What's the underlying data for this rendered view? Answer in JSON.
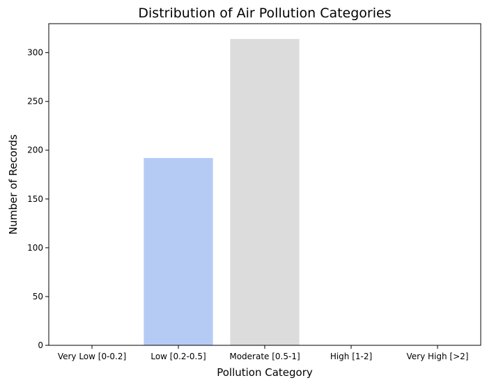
{
  "chart_data": {
    "type": "bar",
    "title": "Distribution of Air Pollution Categories",
    "xlabel": "Pollution Category",
    "ylabel": "Number of Records",
    "categories": [
      "Very Low [0-0.2]",
      "Low [0.2-0.5]",
      "Moderate [0.5-1]",
      "High [1-2]",
      "Very High [>2]"
    ],
    "values": [
      0,
      192,
      314,
      0,
      0
    ],
    "bar_colors": [
      "#3b4cc0",
      "#b6cbf4",
      "#dcdcdc",
      "#f2b89e",
      "#b40426"
    ],
    "yticks": [
      0,
      50,
      100,
      150,
      200,
      250,
      300
    ],
    "ylim": [
      0,
      329.7
    ],
    "grid": false,
    "legend": "none"
  }
}
